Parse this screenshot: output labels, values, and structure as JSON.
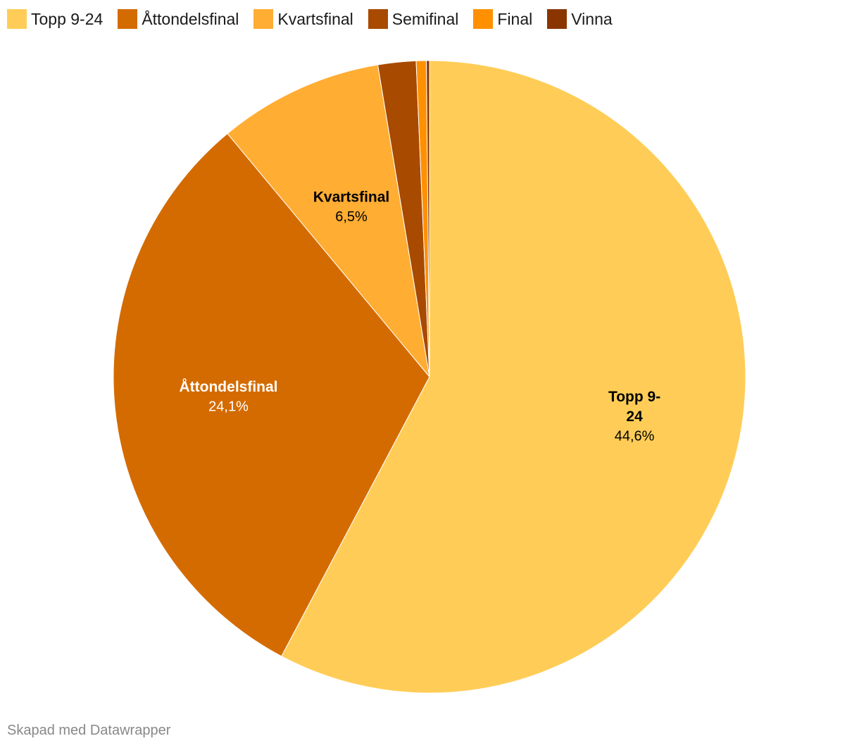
{
  "chart_data": {
    "type": "pie",
    "slices": [
      {
        "label": "Topp 9-24",
        "value": 44.6,
        "value_label": "44,6%",
        "color": "#ffcd57"
      },
      {
        "label": "Åttondelsfinal",
        "value": 24.1,
        "value_label": "24,1%",
        "color": "#d46b00"
      },
      {
        "label": "Kvartsfinal",
        "value": 6.5,
        "value_label": "6,5%",
        "color": "#ffad33"
      },
      {
        "label": "Semifinal",
        "value": 1.5,
        "color": "#a84a00"
      },
      {
        "label": "Final",
        "value": 0.4,
        "color": "#ff9100"
      },
      {
        "label": "Vinna",
        "value": 0.12,
        "color": "#8a3500"
      }
    ],
    "legend": {
      "placement": "top-left",
      "items": [
        "Topp 9-24",
        "Åttondelsfinal",
        "Kvartsfinal",
        "Semifinal",
        "Final",
        "Vinna"
      ]
    },
    "slice_labels": {
      "topp": {
        "name_lines": [
          "Topp 9-",
          "24"
        ],
        "value": "44,6%",
        "color": "#000000"
      },
      "attondel": {
        "name_lines": [
          "Åttondelsfinal"
        ],
        "value": "24,1%",
        "color": "#ffffff"
      },
      "kvarts": {
        "name_lines": [
          "Kvartsfinal"
        ],
        "value": "6,5%",
        "color": "#000000"
      }
    }
  },
  "footer": {
    "credit": "Skapad med Datawrapper"
  }
}
